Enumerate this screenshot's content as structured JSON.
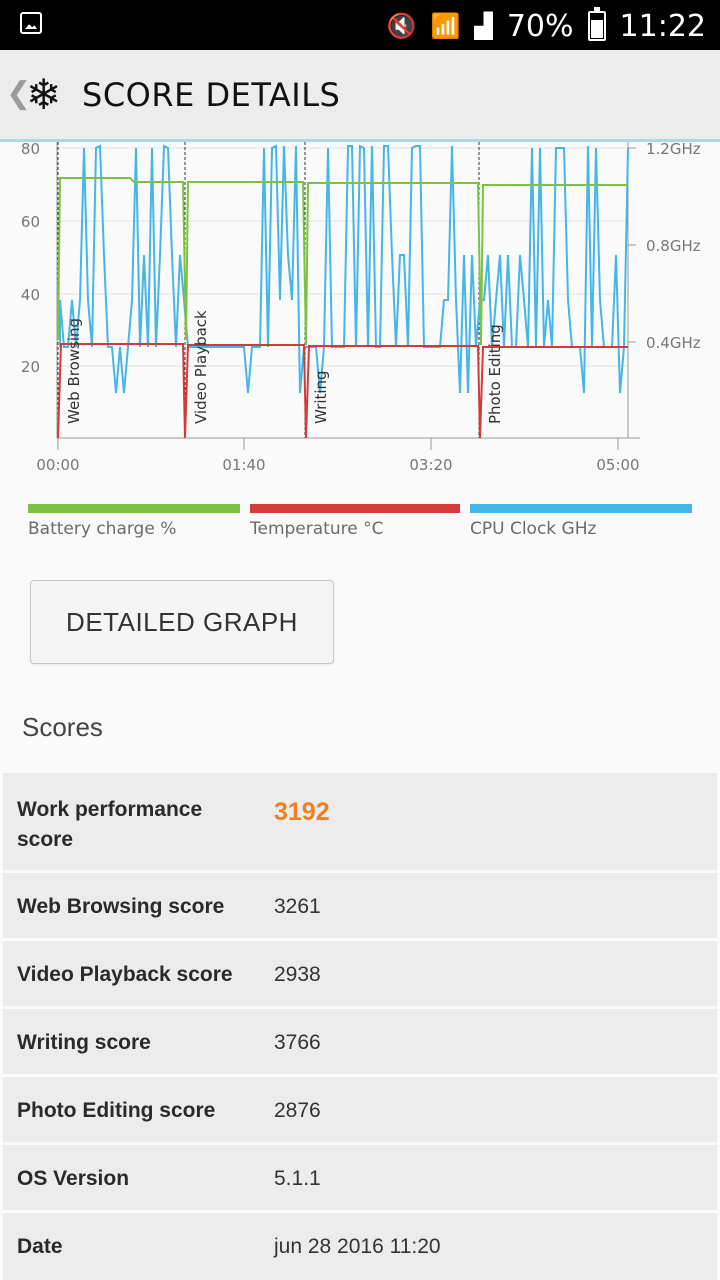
{
  "status": {
    "battery": "70%",
    "time": "11:22"
  },
  "appbar": {
    "title": "SCORE DETAILS",
    "back_icon": "chevron-left-icon",
    "logo_icon": "snowflake-icon"
  },
  "chart_data": {
    "type": "line",
    "x_ticks": [
      "00:00",
      "01:40",
      "03:20",
      "05:00"
    ],
    "y_left_ticks": [
      "80",
      "60",
      "40",
      "20"
    ],
    "y_right_ticks": [
      "1.2GHz",
      "0.8GHz",
      "0.4GHz"
    ],
    "ylim": [
      0,
      80
    ],
    "segments": [
      "Web Browsing",
      "Video Playback",
      "Writing",
      "Photo Editing"
    ],
    "series": [
      {
        "name": "Battery charge %",
        "color": "#7cc242"
      },
      {
        "name": "Temperature °C",
        "color": "#d43a3a"
      },
      {
        "name": "CPU Clock GHz",
        "color": "#45b6e8"
      }
    ]
  },
  "legend": [
    "Battery charge %",
    "Temperature °C",
    "CPU Clock GHz"
  ],
  "button": {
    "label": "DETAILED GRAPH"
  },
  "scores": {
    "title": "Scores",
    "rows": [
      {
        "label": "Work performance score",
        "value": "3192"
      },
      {
        "label": "Web Browsing score",
        "value": "3261"
      },
      {
        "label": "Video Playback score",
        "value": "2938"
      },
      {
        "label": "Writing score",
        "value": "3766"
      },
      {
        "label": "Photo Editing score",
        "value": "2876"
      },
      {
        "label": "OS Version",
        "value": "5.1.1"
      },
      {
        "label": "Date",
        "value": "jun 28 2016 11:20"
      }
    ]
  }
}
